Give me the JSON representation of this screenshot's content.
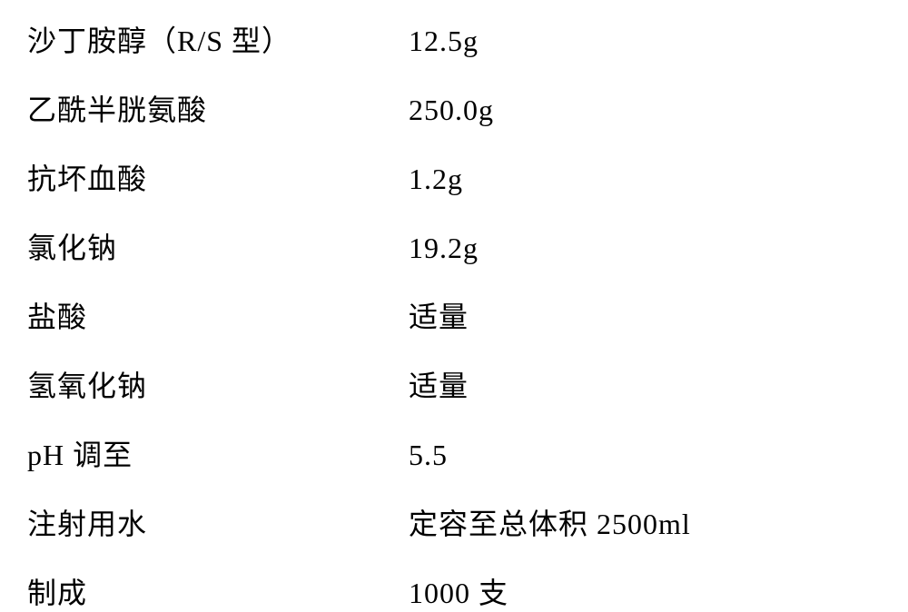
{
  "formula": {
    "rows": [
      {
        "label": "沙丁胺醇（R/S 型）",
        "value": "12.5g"
      },
      {
        "label": "乙酰半胱氨酸",
        "value": "250.0g"
      },
      {
        "label": "抗坏血酸",
        "value": "1.2g"
      },
      {
        "label": "氯化钠",
        "value": "19.2g"
      },
      {
        "label": "盐酸",
        "value": "适量"
      },
      {
        "label": "氢氧化钠",
        "value": "适量"
      },
      {
        "label": "pH 调至",
        "value": "5.5"
      },
      {
        "label": "注射用水",
        "value": "定容至总体积 2500ml"
      },
      {
        "label": "制成",
        "value": "1000 支"
      }
    ],
    "label_fontsize": 32,
    "value_fontsize": 32,
    "text_color": "#000000",
    "background_color": "#ffffff",
    "label_column_width": 400,
    "row_spacing": 30
  }
}
